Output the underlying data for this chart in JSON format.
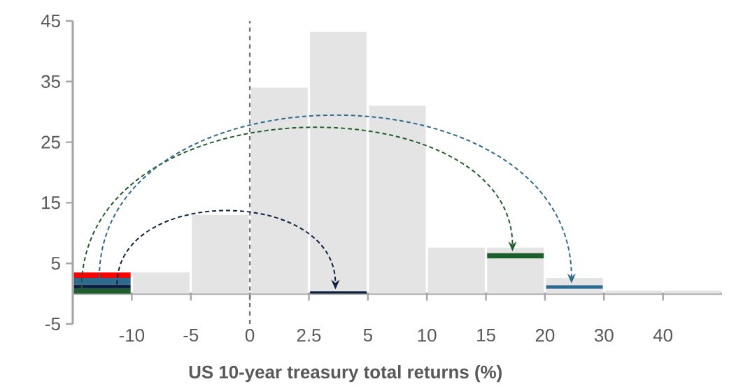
{
  "chart_data": {
    "type": "bar",
    "stacked": true,
    "xlabel": "US 10-year treasury total returns (%)",
    "categories": [
      null,
      null,
      null,
      null,
      null,
      null,
      null,
      null,
      null,
      null,
      null
    ],
    "annotations": [
      "-10",
      "-5",
      "0",
      "2.5",
      "5",
      "10",
      "15",
      "20",
      "30",
      "40"
    ],
    "ylim": [
      -5,
      45
    ],
    "yticks": [
      -5,
      5,
      15,
      25,
      35,
      45
    ],
    "series": [
      {
        "color": "#e4e4e4",
        "values": [
          null,
          null,
          null,
          null,
          null,
          null,
          null,
          5.8,
          0.8,
          null,
          null
        ]
      },
      {
        "color": "#1e5e2a",
        "values": [
          0.8,
          null,
          null,
          null,
          null,
          null,
          null,
          0.9,
          null,
          null,
          null
        ]
      },
      {
        "color": "#0b2240",
        "values": [
          0.7,
          null,
          null,
          null,
          0.4,
          null,
          null,
          null,
          null,
          null,
          null
        ]
      },
      {
        "color": "#2e6a8e",
        "values": [
          1.1,
          null,
          null,
          null,
          null,
          null,
          null,
          null,
          0.6,
          null,
          null
        ]
      },
      {
        "color": "#ff0000",
        "values": [
          0.9,
          null,
          null,
          null,
          null,
          null,
          null,
          null,
          null,
          null,
          null
        ]
      },
      {
        "color": "#e4e4e4",
        "values": [
          null,
          3.5,
          13,
          34,
          42.8,
          31,
          7.6,
          0.9,
          1.2,
          0.5,
          0.5
        ]
      }
    ]
  }
}
